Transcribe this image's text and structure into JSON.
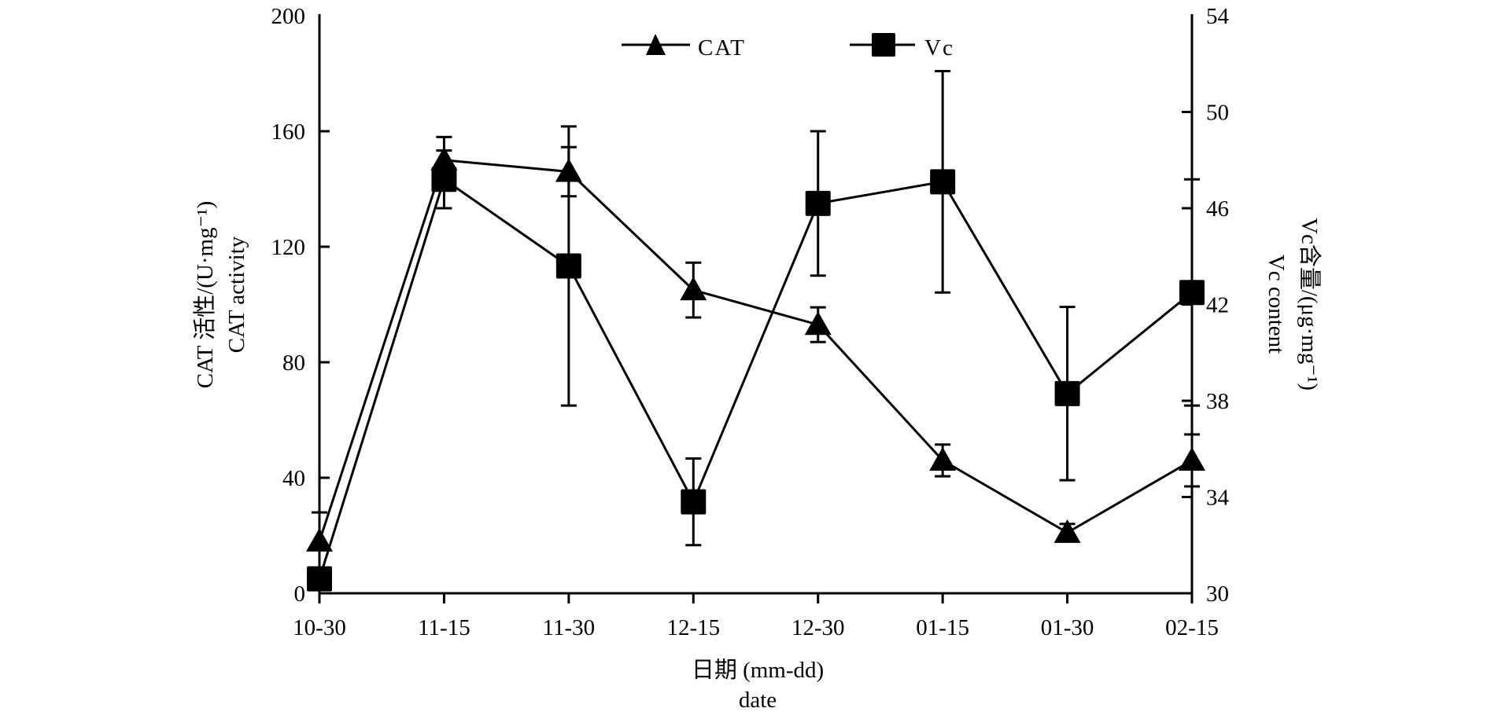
{
  "chart_data": {
    "type": "line",
    "title": "",
    "categories": [
      "10-30",
      "11-15",
      "11-30",
      "12-15",
      "12-30",
      "01-15",
      "01-30",
      "02-15"
    ],
    "xlabel": [
      "日期 (mm-dd)",
      "date"
    ],
    "ylabel_left": [
      "CAT 活性/(U·mg⁻¹)",
      "CAT activity"
    ],
    "ylabel_right": [
      "Vc含量/(μg·mg⁻¹)",
      "Vc content"
    ],
    "y_left": {
      "lim": [
        0,
        200
      ],
      "ticks": [
        0,
        40,
        80,
        120,
        160,
        200
      ]
    },
    "y_right": {
      "lim": [
        30,
        54
      ],
      "ticks": [
        30,
        34,
        38,
        42,
        46,
        50,
        54
      ]
    },
    "grid": false,
    "legend_position": "top-center",
    "series": [
      {
        "name": "CAT",
        "axis": "left",
        "marker": "triangle",
        "values": [
          18,
          150,
          146,
          105,
          93,
          46,
          21,
          46
        ],
        "errors": [
          10,
          8,
          8.5,
          9.5,
          6,
          5.5,
          3,
          9
        ]
      },
      {
        "name": "Vc",
        "axis": "right",
        "marker": "square",
        "values": [
          30.6,
          47.2,
          43.6,
          33.8,
          46.2,
          47.1,
          38.3,
          42.5
        ],
        "errors": [
          0,
          1.2,
          5.8,
          1.8,
          3.0,
          4.6,
          3.6,
          4.7
        ]
      }
    ],
    "colors": {
      "line": "#000000",
      "marker": "#000000"
    }
  }
}
